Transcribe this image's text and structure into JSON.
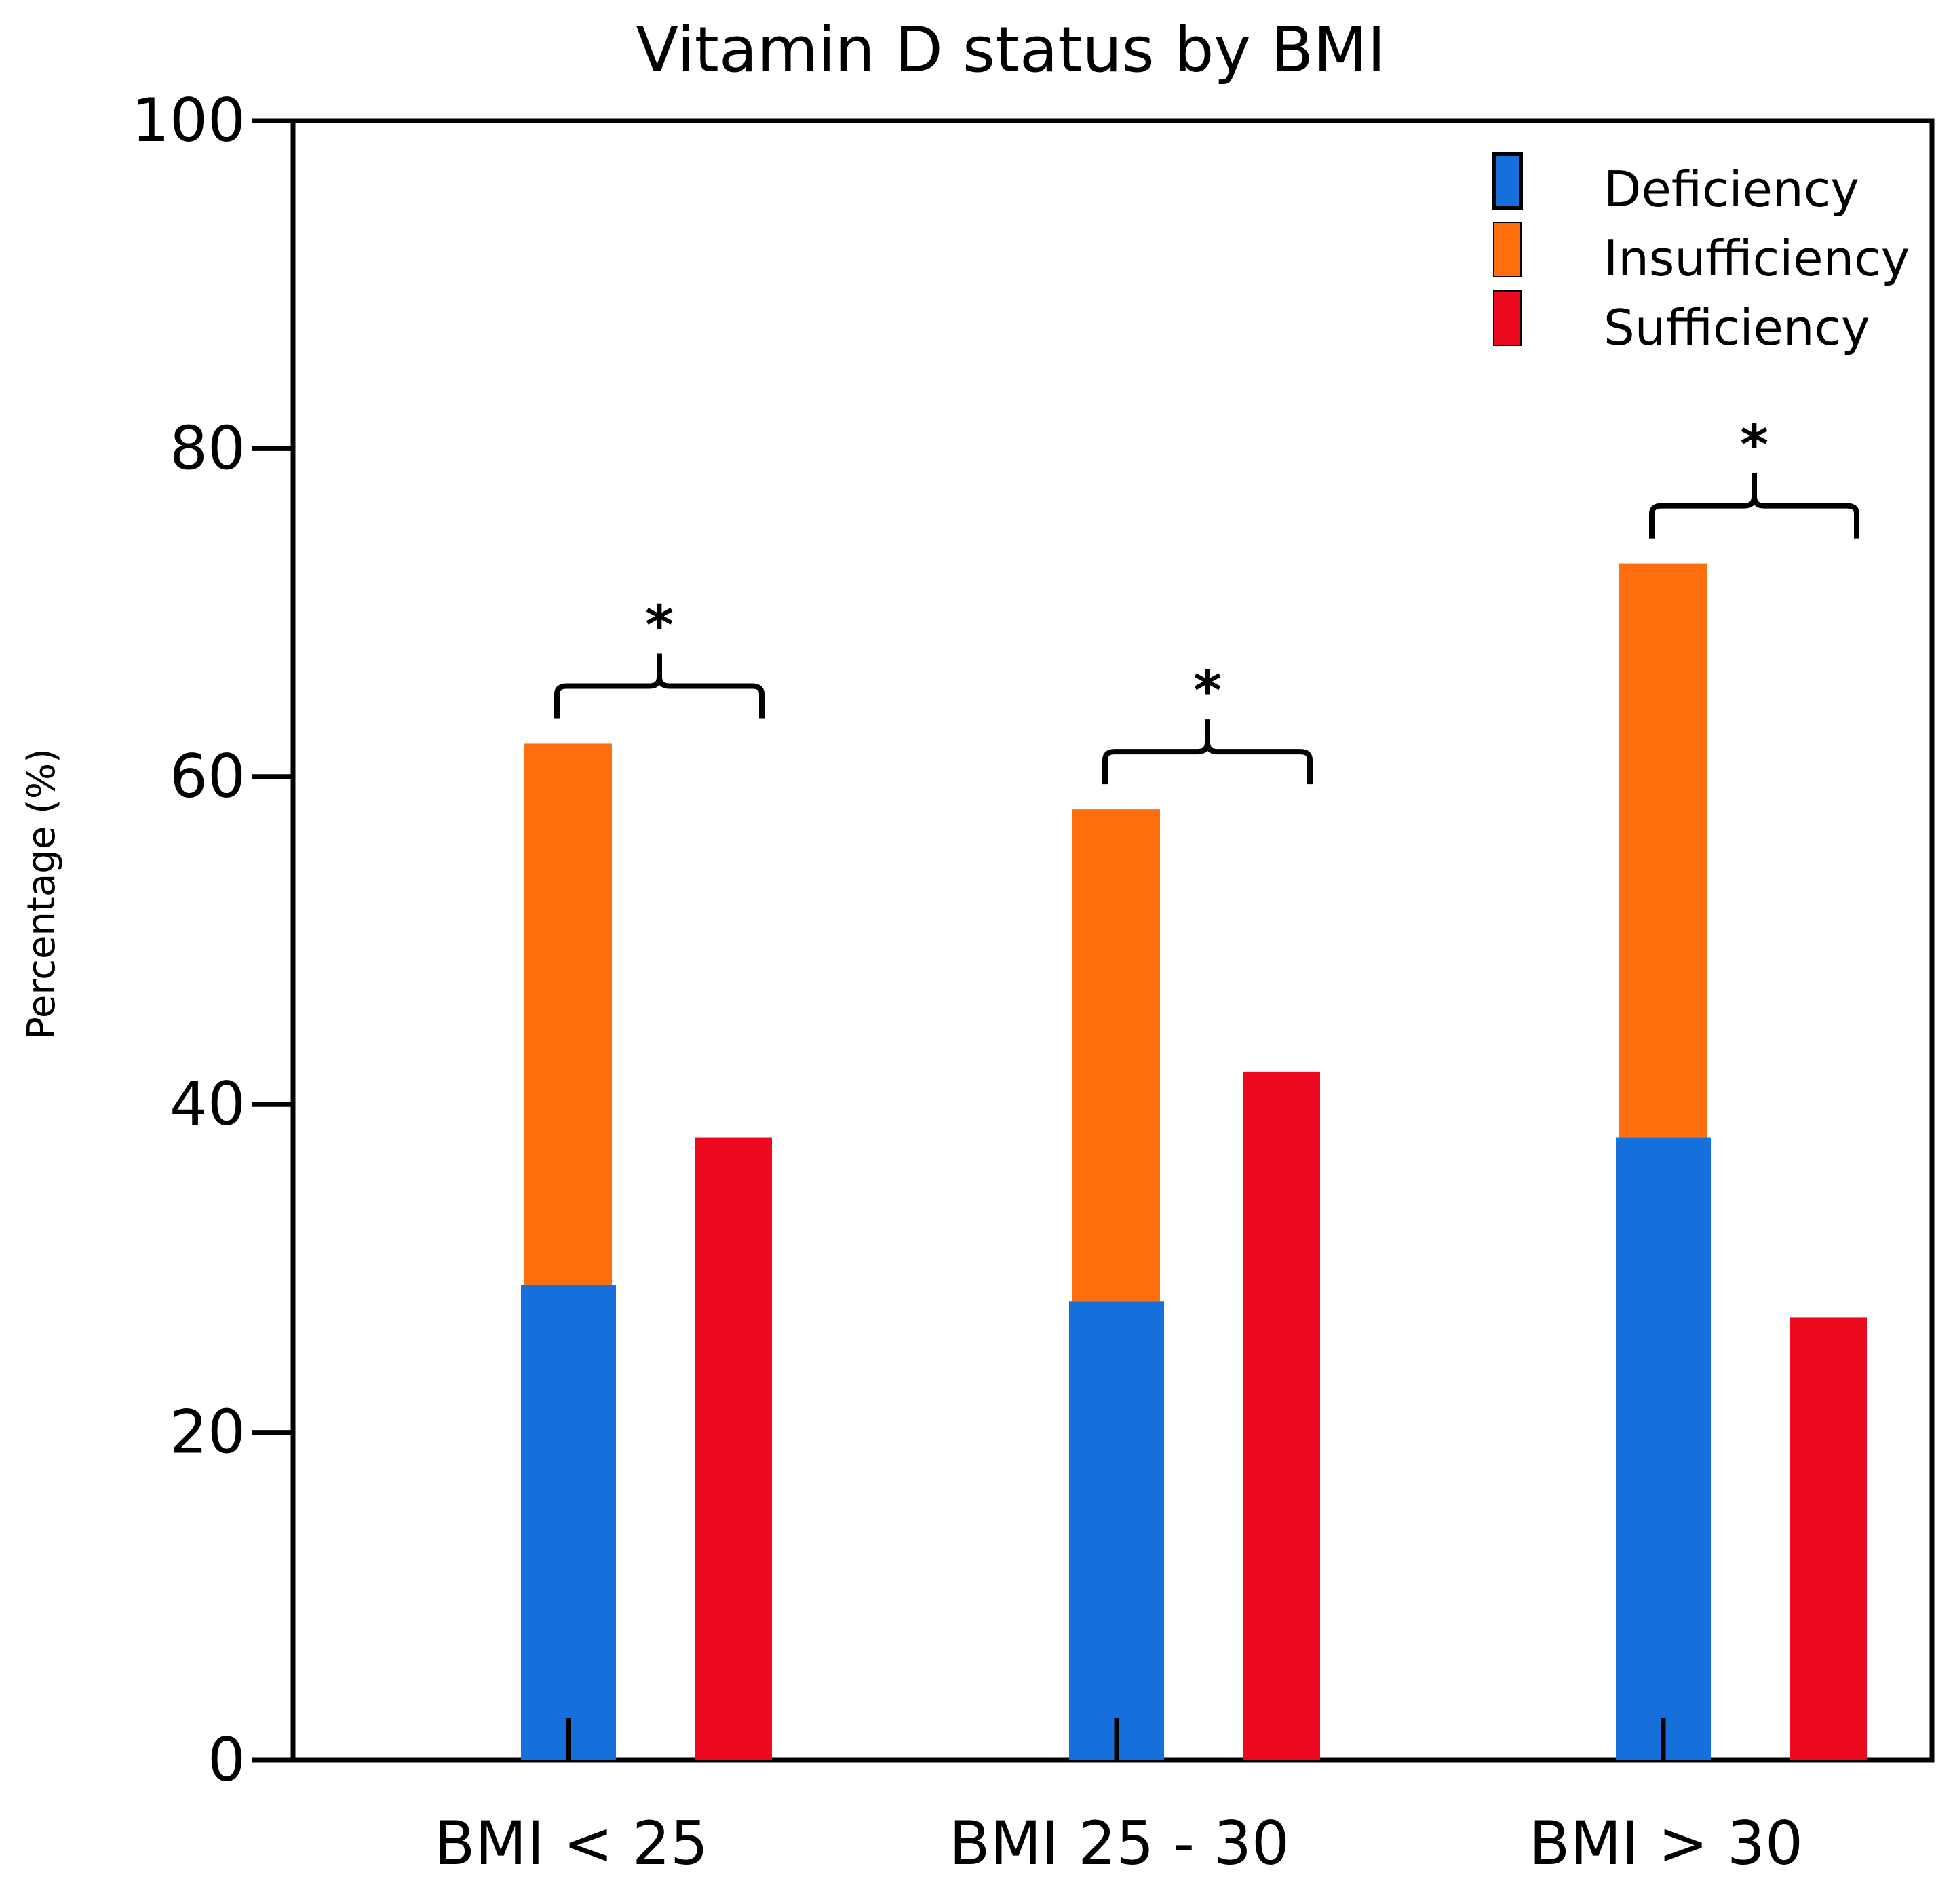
{
  "chart_data": {
    "type": "bar",
    "title": "Vitamin D status by BMI",
    "xlabel": "",
    "ylabel": "Percentage  (%)",
    "ylim": [
      0,
      100
    ],
    "yticks": [
      "0",
      "20",
      "40",
      "60",
      "80",
      "100"
    ],
    "categories": [
      "BMI < 25",
      "BMI 25 - 30",
      "BMI > 30"
    ],
    "series": [
      {
        "name": "Deficiency",
        "color": "#1570DC",
        "values": [
          29,
          28,
          38
        ],
        "stack": "low"
      },
      {
        "name": "Insufficiency",
        "color": "#FF6E0C",
        "values": [
          33,
          30,
          35
        ],
        "stack": "low"
      },
      {
        "name": "Sufficiency",
        "color": "#EE0A1E",
        "values": [
          38,
          42,
          27
        ],
        "stack": "high"
      }
    ],
    "annotations": [
      "*",
      "*",
      "*"
    ],
    "legend_position": "top-right",
    "grid": false
  }
}
